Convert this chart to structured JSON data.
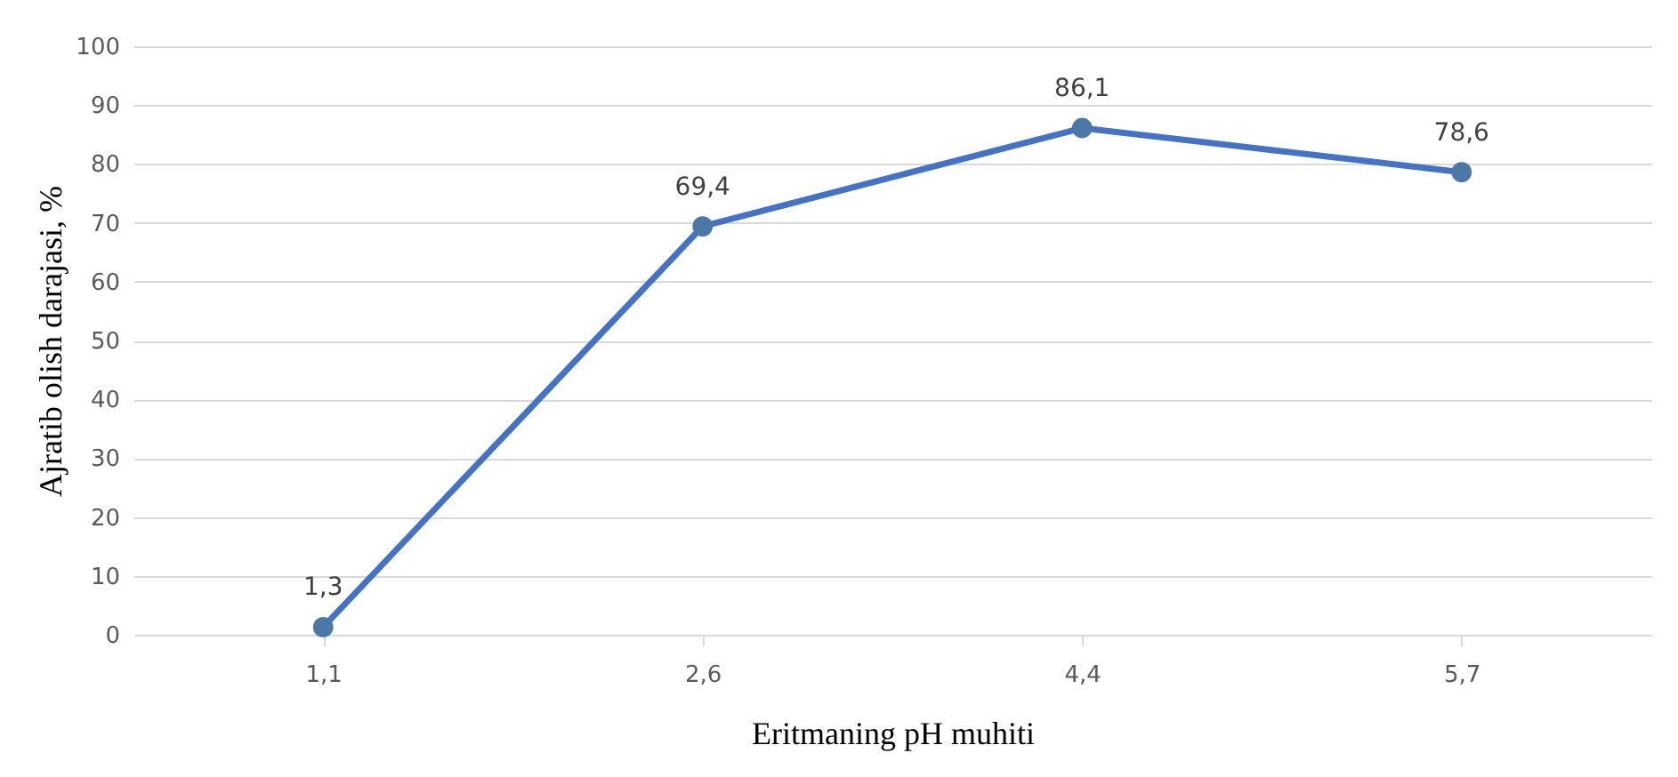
{
  "chart_data": {
    "type": "line",
    "xlabel": "Eritmaning pH muhiti",
    "ylabel": "Ajratib olish darajasi, %",
    "categories": [
      "1,1",
      "2,6",
      "4,4",
      "5,7"
    ],
    "series": [
      {
        "color": "#4472c4",
        "values": [
          1.3,
          69.4,
          86.1,
          78.6
        ],
        "value_labels": [
          "1,3",
          "69,4",
          "86,1",
          "78,6"
        ]
      }
    ],
    "ylim": [
      0,
      100
    ],
    "yticks": [
      0,
      10,
      20,
      30,
      40,
      50,
      60,
      70,
      80,
      90,
      100
    ],
    "grid": "y",
    "marker": "circle",
    "line_style": "solid"
  }
}
